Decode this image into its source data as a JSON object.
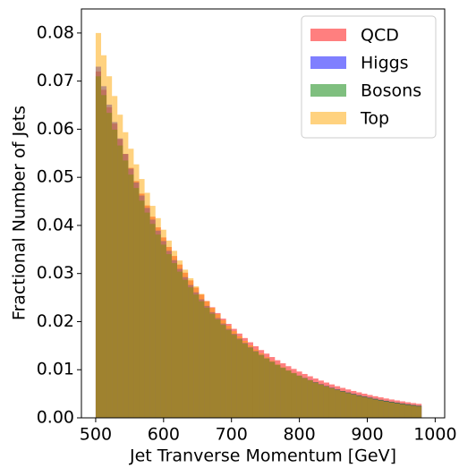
{
  "chart_data": {
    "type": "histogram",
    "xlabel": "Jet Tranverse Momentum [GeV]",
    "ylabel": "Fractional Number of Jets",
    "bins": [
      500,
      508,
      516,
      524,
      532,
      540,
      548,
      556,
      564,
      572,
      580,
      588,
      596,
      604,
      612,
      620,
      628,
      636,
      644,
      652,
      660,
      668,
      676,
      684,
      692,
      700,
      708,
      716,
      724,
      732,
      740,
      748,
      756,
      764,
      772,
      780,
      788,
      796,
      804,
      812,
      820,
      828,
      836,
      844,
      852,
      860,
      868,
      876,
      884,
      892,
      900,
      908,
      916,
      924,
      932,
      940,
      948,
      956,
      964,
      972,
      980
    ],
    "series": [
      {
        "name": "QCD",
        "color": "#ff0000",
        "values": [
          0.072,
          0.06819,
          0.06458,
          0.06117,
          0.05793,
          0.05487,
          0.05196,
          0.04921,
          0.04661,
          0.04414,
          0.04181,
          0.0396,
          0.0375,
          0.03552,
          0.03364,
          0.03186,
          0.03017,
          0.02858,
          0.02707,
          0.02563,
          0.02428,
          0.02299,
          0.02178,
          0.02062,
          0.01953,
          0.0185,
          0.01752,
          0.01659,
          0.01571,
          0.01488,
          0.01409,
          0.01335,
          0.01264,
          0.01197,
          0.01134,
          0.01074,
          0.01017,
          0.00963,
          0.00912,
          0.00864,
          0.00818,
          0.00775,
          0.00734,
          0.00695,
          0.00658,
          0.00623,
          0.0059,
          0.00559,
          0.0053,
          0.00502,
          0.00475,
          0.0045,
          0.00426,
          0.00403,
          0.00382,
          0.00362,
          0.00343,
          0.00324,
          0.00307,
          0.00291
        ]
      },
      {
        "name": "Higgs",
        "color": "#0000ff",
        "values": [
          0.073,
          0.06894,
          0.06511,
          0.06149,
          0.05808,
          0.05485,
          0.0518,
          0.04892,
          0.04621,
          0.04364,
          0.04121,
          0.03892,
          0.03676,
          0.03472,
          0.03279,
          0.03097,
          0.02925,
          0.02762,
          0.02609,
          0.02464,
          0.02327,
          0.02198,
          0.02075,
          0.0196,
          0.01851,
          0.01748,
          0.01651,
          0.01559,
          0.01473,
          0.01391,
          0.01314,
          0.01241,
          0.01172,
          0.01107,
          0.01045,
          0.00987,
          0.00932,
          0.0088,
          0.00832,
          0.00785,
          0.00742,
          0.007,
          0.00662,
          0.00625,
          0.0059,
          0.00557,
          0.00526,
          0.00497,
          0.00469,
          0.00443,
          0.00419,
          0.00395,
          0.00373,
          0.00353,
          0.00333,
          0.00315,
          0.00297,
          0.00281,
          0.00265,
          0.0025
        ]
      },
      {
        "name": "Bosons",
        "color": "#008000",
        "values": [
          0.071,
          0.06709,
          0.0634,
          0.05991,
          0.05662,
          0.0535,
          0.05056,
          0.04778,
          0.04515,
          0.04267,
          0.04032,
          0.0381,
          0.03601,
          0.03403,
          0.03216,
          0.03039,
          0.02871,
          0.02713,
          0.02564,
          0.02423,
          0.0229,
          0.02164,
          0.02045,
          0.01932,
          0.01826,
          0.01726,
          0.01631,
          0.01541,
          0.01456,
          0.01376,
          0.013,
          0.01229,
          0.01161,
          0.01097,
          0.01037,
          0.0098,
          0.00926,
          0.00875,
          0.00827,
          0.00782,
          0.00739,
          0.00698,
          0.0066,
          0.00623,
          0.00589,
          0.00557,
          0.00526,
          0.00497,
          0.0047,
          0.00444,
          0.0042,
          0.00397,
          0.00375,
          0.00354,
          0.00335,
          0.00316,
          0.00299,
          0.00283,
          0.00267,
          0.00252
        ]
      },
      {
        "name": "Top",
        "color": "#ffa500",
        "values": [
          0.08,
          0.07537,
          0.07101,
          0.0669,
          0.06302,
          0.05938,
          0.05594,
          0.0527,
          0.04965,
          0.04678,
          0.04407,
          0.04152,
          0.03911,
          0.03685,
          0.03472,
          0.03271,
          0.03081,
          0.02903,
          0.02735,
          0.02577,
          0.02427,
          0.02287,
          0.02154,
          0.0203,
          0.01912,
          0.01801,
          0.01697,
          0.01599,
          0.01506,
          0.01419,
          0.01337,
          0.0126,
          0.01187,
          0.01118,
          0.01053,
          0.00992,
          0.00935,
          0.00881,
          0.0083,
          0.00782,
          0.00736,
          0.00694,
          0.00654,
          0.00616,
          0.0058,
          0.00547,
          0.00515,
          0.00485,
          0.00457,
          0.00431,
          0.00406,
          0.00382,
          0.0036,
          0.00339,
          0.0032,
          0.00301,
          0.00284,
          0.00267,
          0.00252,
          0.00237
        ]
      }
    ],
    "opacity": 0.5,
    "xlim": [
      479,
      1014
    ],
    "ylim": [
      0,
      0.085
    ],
    "xticks": [
      500,
      600,
      700,
      800,
      900,
      1000
    ],
    "yticks": [
      {
        "value": 0,
        "label": "0.00"
      },
      {
        "value": 0.01,
        "label": "0.01"
      },
      {
        "value": 0.02,
        "label": "0.02"
      },
      {
        "value": 0.03,
        "label": "0.03"
      },
      {
        "value": 0.04,
        "label": "0.04"
      },
      {
        "value": 0.05,
        "label": "0.05"
      },
      {
        "value": 0.06,
        "label": "0.06"
      },
      {
        "value": 0.07,
        "label": "0.07"
      },
      {
        "value": 0.08,
        "label": "0.08"
      }
    ],
    "grid": false,
    "legend": "upper right"
  }
}
